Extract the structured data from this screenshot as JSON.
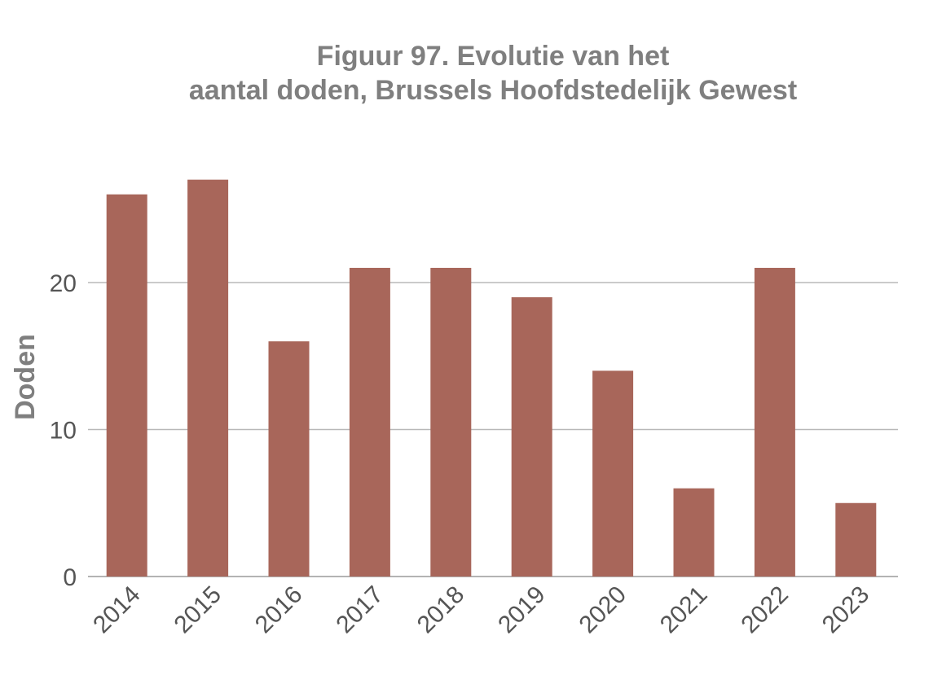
{
  "chart_data": {
    "type": "bar",
    "title": [
      "Figuur 97. Evolutie van het",
      "aantal doden, Brussels Hoofdstedelijk Gewest"
    ],
    "ylabel": "Doden",
    "xlabel": "",
    "categories": [
      "2014",
      "2015",
      "2016",
      "2017",
      "2018",
      "2019",
      "2020",
      "2021",
      "2022",
      "2023"
    ],
    "values": [
      26,
      27,
      16,
      21,
      21,
      19,
      14,
      6,
      21,
      5
    ],
    "ylim": [
      0,
      30
    ],
    "yticks": [
      "0",
      "10",
      "20"
    ],
    "grid": true,
    "bar_color": "#a8665a",
    "title_color": "#7f7f7f",
    "tick_color": "#555555"
  }
}
